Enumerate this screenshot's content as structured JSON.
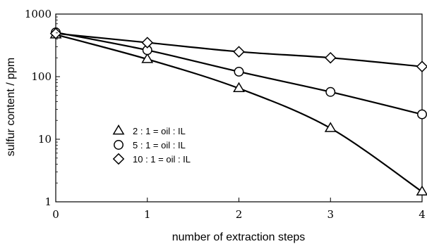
{
  "chart_data": {
    "type": "line",
    "title": "",
    "xlabel": "number of extraction steps",
    "ylabel": "sulfur content / ppm",
    "x": [
      0,
      1,
      2,
      3,
      4
    ],
    "x_tick_labels": [
      "0",
      "1",
      "2",
      "3",
      "4"
    ],
    "xlim": [
      0,
      4
    ],
    "ylim": [
      1,
      1000
    ],
    "yscale": "log",
    "y_tick_values": [
      1,
      10,
      100,
      1000
    ],
    "y_tick_labels": [
      "1",
      "10",
      "100",
      "1000"
    ],
    "grid": false,
    "legend_position": "lower-left",
    "series": [
      {
        "name": "2 : 1 = oil : IL",
        "marker": "triangle",
        "values": [
          470,
          190,
          65,
          15,
          1.45
        ]
      },
      {
        "name": "5 : 1 = oil : IL",
        "marker": "circle",
        "values": [
          510,
          265,
          120,
          57,
          25
        ]
      },
      {
        "name": "10 : 1 = oil : IL",
        "marker": "diamond",
        "values": [
          490,
          350,
          250,
          200,
          145
        ]
      }
    ],
    "colors": {
      "line": "#000000",
      "marker_fill": "#ffffff"
    }
  }
}
